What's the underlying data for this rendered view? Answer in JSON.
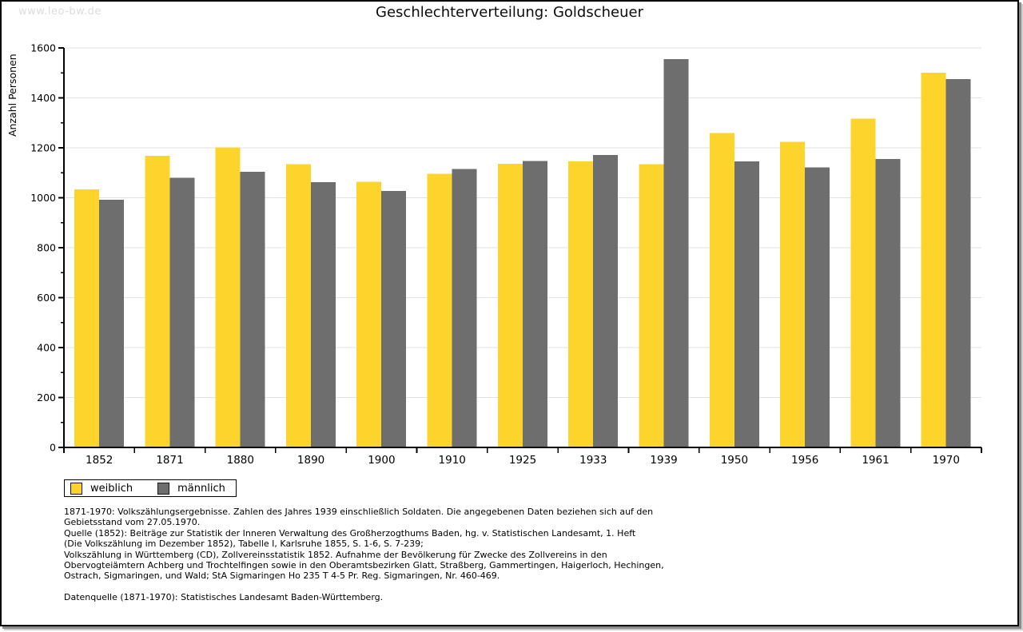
{
  "watermark": "www.leo-bw.de",
  "title": "Geschlechterverteilung: Goldscheuer",
  "chart_data": {
    "type": "bar",
    "title": "Geschlechterverteilung: Goldscheuer",
    "xlabel": "",
    "ylabel": "Anzahl Personen",
    "categories": [
      "1852",
      "1871",
      "1880",
      "1890",
      "1900",
      "1910",
      "1925",
      "1933",
      "1939",
      "1950",
      "1956",
      "1961",
      "1970"
    ],
    "series": [
      {
        "name": "weiblich",
        "color": "#FCD42B",
        "values": [
          1033,
          1168,
          1202,
          1134,
          1064,
          1096,
          1136,
          1145,
          1135,
          1259,
          1224,
          1317,
          1501
        ]
      },
      {
        "name": "männlich",
        "color": "#6E6E6E",
        "values": [
          992,
          1080,
          1104,
          1062,
          1027,
          1116,
          1148,
          1171,
          1556,
          1146,
          1122,
          1155,
          1475
        ]
      }
    ],
    "ylim": [
      0,
      1600
    ],
    "ytick_step": 200,
    "ytick_minor_step": 100,
    "grid": "horizontal-major",
    "grid_color": "#e2e2e2",
    "legend_position": "bottom-left"
  },
  "legend": {
    "items": [
      {
        "label": "weiblich",
        "color": "#FCD42B"
      },
      {
        "label": "männlich",
        "color": "#6E6E6E"
      }
    ]
  },
  "footer": {
    "lines": [
      "1871-1970: Volkszählungsergebnisse. Zahlen des Jahres 1939 einschließlich Soldaten. Die angegebenen Daten beziehen sich auf den",
      "Gebietsstand vom 27.05.1970.",
      "Quelle (1852): Beiträge zur Statistik der Inneren Verwaltung des Großherzogthums Baden, hg. v. Statistischen Landesamt, 1. Heft",
      "(Die Volkszählung im Dezember 1852), Tabelle I, Karlsruhe 1855, S. 1-6, S. 7-239;",
      "Volkszählung in Württemberg (CD), Zollvereinsstatistik 1852. Aufnahme der Bevölkerung für Zwecke des Zollvereins in den",
      "Obervogteiämtern Achberg und Trochtelfingen sowie in den Oberamtsbezirken Glatt, Straßberg, Gammertingen, Haigerloch, Hechingen,",
      "Ostrach, Sigmaringen, und Wald; StA Sigmaringen Ho 235 T 4-5 Pr. Reg. Sigmaringen, Nr. 460-469."
    ],
    "datasource": "Datenquelle (1871-1970): Statistisches Landesamt Baden-Württemberg."
  }
}
